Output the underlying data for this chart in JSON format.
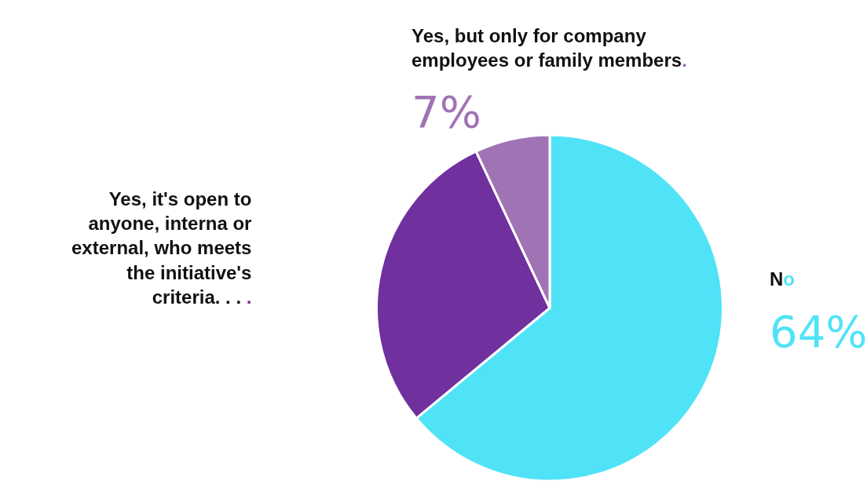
{
  "chart_data": {
    "type": "pie",
    "categories": [
      "No",
      "Yes, it's open to\nanyone, interna or\nexternal, who meets\nthe initiative's\ncriteria. . . .",
      "Yes, but only for company\nemployees or family members."
    ],
    "values": [
      64,
      29,
      7
    ],
    "colors": [
      "#50e3f8",
      "#70309e",
      "#a073b5"
    ],
    "value_labels": [
      "64%",
      null,
      "7%"
    ]
  }
}
